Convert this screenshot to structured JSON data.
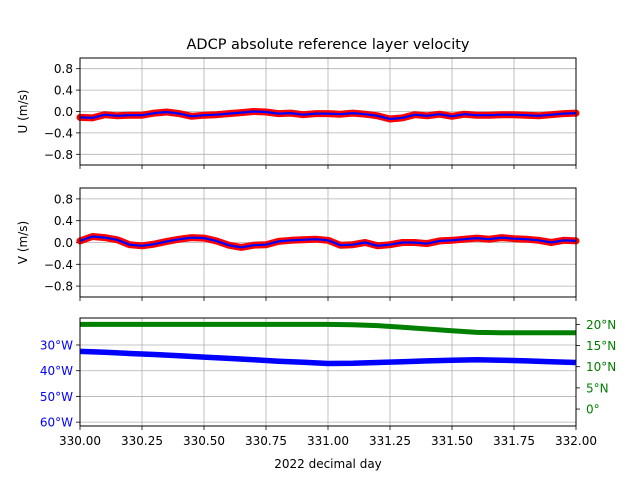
{
  "figure": {
    "title": "ADCP absolute reference layer velocity",
    "xlabel": "2022 decimal day",
    "xticks": [
      "330.00",
      "330.25",
      "330.50",
      "330.75",
      "331.00",
      "331.25",
      "331.50",
      "331.75",
      "332.00"
    ]
  },
  "colors": {
    "raw": "#ff0000",
    "smoothed": "#0000ff",
    "longitude": "#0000ff",
    "latitude": "#008000",
    "grid": "#b0b0b0",
    "axis": "#000000"
  },
  "chart_data": [
    {
      "type": "line",
      "title": "ADCP absolute reference layer velocity",
      "ylabel": "U (m/s)",
      "xlim": [
        330.0,
        332.0
      ],
      "ylim": [
        -1.0,
        1.0
      ],
      "yticks": [
        "0.8",
        "0.4",
        "0.0",
        "−0.4",
        "−0.8"
      ],
      "ytick_values": [
        0.8,
        0.4,
        0.0,
        -0.4,
        -0.8
      ],
      "grid": true,
      "x": [
        330.0,
        330.05,
        330.1,
        330.15,
        330.2,
        330.25,
        330.3,
        330.35,
        330.4,
        330.45,
        330.5,
        330.55,
        330.6,
        330.65,
        330.7,
        330.75,
        330.8,
        330.85,
        330.9,
        330.95,
        331.0,
        331.05,
        331.1,
        331.15,
        331.2,
        331.25,
        331.3,
        331.35,
        331.4,
        331.45,
        331.5,
        331.55,
        331.6,
        331.65,
        331.7,
        331.75,
        331.8,
        331.85,
        331.9,
        331.95,
        332.0
      ],
      "series": [
        {
          "values": [
            -0.11,
            -0.12,
            -0.06,
            -0.08,
            -0.07,
            -0.07,
            -0.03,
            -0.01,
            -0.04,
            -0.09,
            -0.07,
            -0.06,
            -0.04,
            -0.02,
            0.0,
            -0.01,
            -0.04,
            -0.03,
            -0.06,
            -0.04,
            -0.04,
            -0.05,
            -0.03,
            -0.05,
            -0.08,
            -0.14,
            -0.12,
            -0.06,
            -0.08,
            -0.05,
            -0.09,
            -0.05,
            -0.07,
            -0.07,
            -0.06,
            -0.06,
            -0.07,
            -0.08,
            -0.06,
            -0.04,
            -0.03
          ]
        }
      ]
    },
    {
      "type": "line",
      "ylabel": "V (m/s)",
      "xlim": [
        330.0,
        332.0
      ],
      "ylim": [
        -1.0,
        1.0
      ],
      "yticks": [
        "0.8",
        "0.4",
        "0.0",
        "−0.4",
        "−0.8"
      ],
      "ytick_values": [
        0.8,
        0.4,
        0.0,
        -0.4,
        -0.8
      ],
      "grid": true,
      "x": [
        330.0,
        330.05,
        330.1,
        330.15,
        330.2,
        330.25,
        330.3,
        330.35,
        330.4,
        330.45,
        330.5,
        330.55,
        330.6,
        330.65,
        330.7,
        330.75,
        330.8,
        330.85,
        330.9,
        330.95,
        331.0,
        331.05,
        331.1,
        331.15,
        331.2,
        331.25,
        331.3,
        331.35,
        331.4,
        331.45,
        331.5,
        331.55,
        331.6,
        331.65,
        331.7,
        331.75,
        331.8,
        331.85,
        331.9,
        331.95,
        332.0
      ],
      "series": [
        {
          "values": [
            0.03,
            0.11,
            0.09,
            0.05,
            -0.04,
            -0.06,
            -0.03,
            0.02,
            0.06,
            0.09,
            0.08,
            0.03,
            -0.05,
            -0.09,
            -0.05,
            -0.04,
            0.02,
            0.04,
            0.05,
            0.06,
            0.04,
            -0.05,
            -0.04,
            0.0,
            -0.06,
            -0.04,
            0.0,
            0.0,
            -0.02,
            0.03,
            0.04,
            0.06,
            0.08,
            0.06,
            0.09,
            0.07,
            0.06,
            0.04,
            0.0,
            0.04,
            0.03
          ]
        }
      ]
    },
    {
      "type": "line",
      "xlabel": "2022 decimal day",
      "xlim": [
        330.0,
        332.0
      ],
      "grid": true,
      "left_axis": {
        "ylim": [
          61.5,
          19.5
        ],
        "yticks": [
          "30°W",
          "40°W",
          "50°W",
          "60°W"
        ],
        "ytick_values": [
          30,
          40,
          50,
          60
        ]
      },
      "right_axis": {
        "ylim": [
          -4,
          21.5
        ],
        "yticks": [
          "20°N",
          "15°N",
          "10°N",
          "5°N",
          "0°"
        ],
        "ytick_values": [
          20,
          15,
          10,
          5,
          0
        ]
      },
      "x": [
        330.0,
        330.1,
        330.2,
        330.3,
        330.4,
        330.5,
        330.6,
        330.7,
        330.8,
        330.9,
        331.0,
        331.1,
        331.2,
        331.3,
        331.4,
        331.5,
        331.6,
        331.7,
        331.8,
        331.9,
        332.0
      ],
      "series": [
        {
          "axis": "left",
          "values": [
            32.5,
            32.8,
            33.3,
            33.7,
            34.2,
            34.7,
            35.2,
            35.7,
            36.3,
            36.7,
            37.2,
            37.1,
            36.8,
            36.5,
            36.2,
            35.9,
            35.7,
            35.9,
            36.2,
            36.5,
            36.8
          ]
        },
        {
          "axis": "right",
          "values": [
            20.0,
            20.0,
            20.0,
            20.0,
            20.0,
            20.0,
            20.0,
            20.0,
            20.0,
            20.0,
            20.0,
            19.9,
            19.7,
            19.3,
            18.9,
            18.5,
            18.1,
            18.0,
            18.0,
            18.0,
            18.0
          ]
        }
      ]
    }
  ]
}
